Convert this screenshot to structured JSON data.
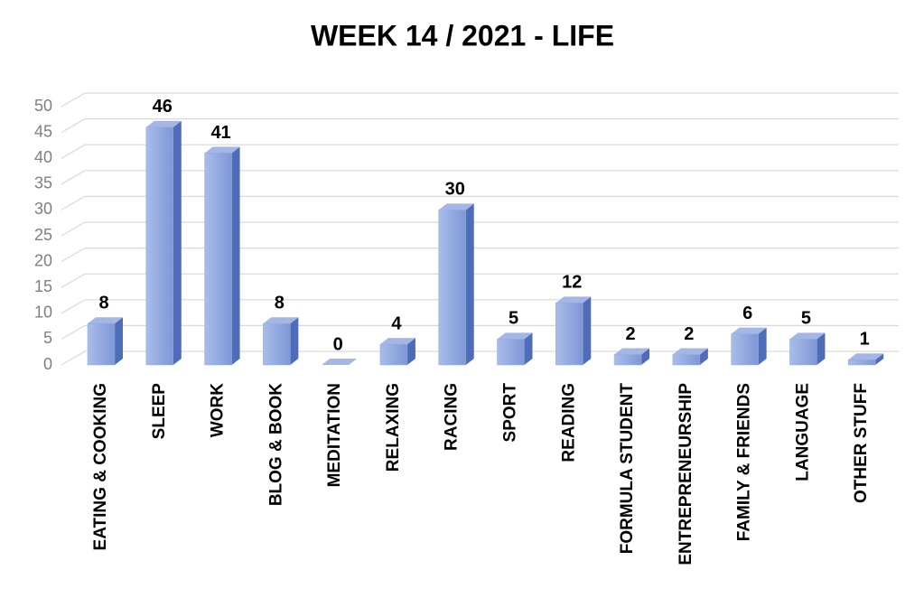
{
  "chart_data": {
    "type": "bar",
    "title": "WEEK 14  / 2021 - LIFE",
    "categories": [
      "EATING & COOKING",
      "SLEEP",
      "WORK",
      "BLOG & BOOK",
      "MEDITATION",
      "RELAXING",
      "RACING",
      "SPORT",
      "READING",
      "FORMULA STUDENT",
      "ENTREPRENEURSHIP",
      "FAMILY & FRIENDS",
      "LANGUAGE",
      "OTHER STUFF"
    ],
    "values": [
      8,
      46,
      41,
      8,
      0,
      4,
      30,
      5,
      12,
      2,
      2,
      6,
      5,
      1
    ],
    "color": "#8faadc",
    "ylim": [
      0,
      50
    ],
    "yticks": [
      0,
      5,
      10,
      15,
      20,
      25,
      30,
      35,
      40,
      45,
      50
    ],
    "grid": true
  }
}
